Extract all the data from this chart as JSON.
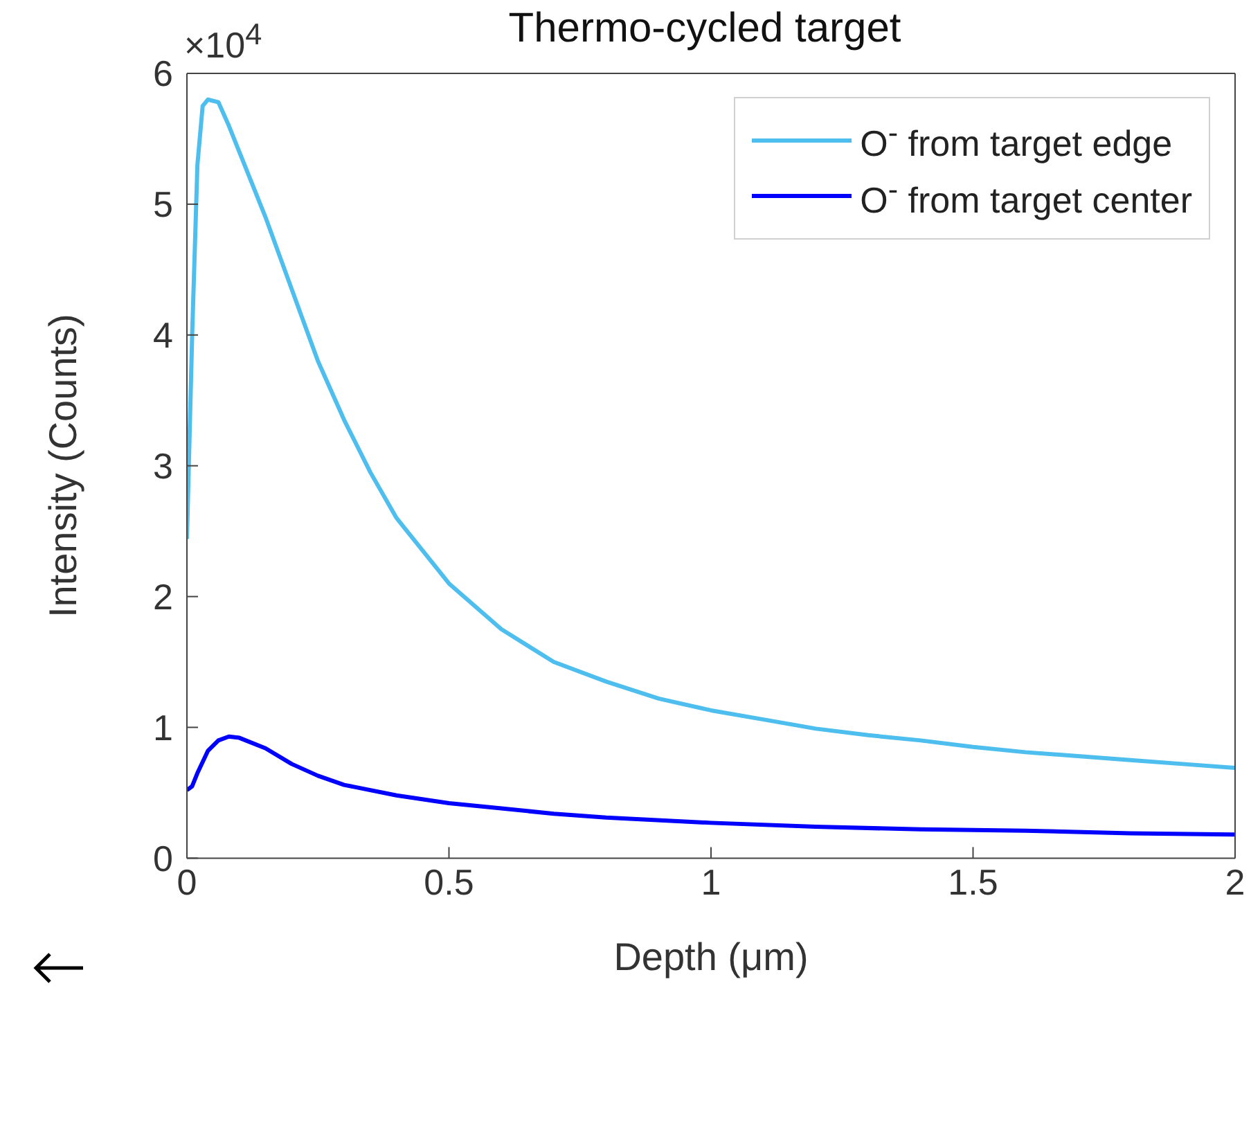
{
  "chart_data": {
    "type": "line",
    "title": "Thermo-cycled target",
    "xlabel": "Depth (μm)",
    "ylabel": "Intensity (Counts)",
    "annotations": [
      "×10$^{4}$"
    ],
    "xlim": [
      0,
      2
    ],
    "xticks": [
      0,
      0.5,
      1,
      1.5,
      2
    ],
    "ylim": [
      0,
      6
    ],
    "yticks": [
      0,
      1,
      2,
      3,
      4,
      5,
      6
    ],
    "grid": false,
    "legend": "top right",
    "line_style": "solid",
    "marker": "none",
    "series": [
      {
        "name": "O$^{-}$ from target edge",
        "color": "#4dbeee",
        "x": [
          0,
          0.01,
          0.02,
          0.03,
          0.04,
          0.06,
          0.08,
          0.1,
          0.15,
          0.2,
          0.25,
          0.3,
          0.35,
          0.4,
          0.45,
          0.5,
          0.6,
          0.7,
          0.8,
          0.9,
          1.0,
          1.1,
          1.2,
          1.3,
          1.4,
          1.5,
          1.6,
          1.7,
          1.8,
          1.9,
          2.0
        ],
        "values": [
          2.44,
          4.0,
          5.3,
          5.75,
          5.8,
          5.78,
          5.6,
          5.4,
          4.9,
          4.35,
          3.8,
          3.35,
          2.95,
          2.6,
          2.35,
          2.1,
          1.75,
          1.5,
          1.35,
          1.22,
          1.13,
          1.06,
          0.99,
          0.94,
          0.9,
          0.85,
          0.81,
          0.78,
          0.75,
          0.72,
          0.69
        ]
      },
      {
        "name": "O$^{-}$ from target center",
        "color": "#0000ff",
        "x": [
          0,
          0.01,
          0.02,
          0.04,
          0.06,
          0.08,
          0.1,
          0.15,
          0.2,
          0.25,
          0.3,
          0.4,
          0.5,
          0.6,
          0.7,
          0.8,
          1.0,
          1.2,
          1.4,
          1.6,
          1.8,
          2.0
        ],
        "values": [
          0.52,
          0.55,
          0.65,
          0.82,
          0.9,
          0.93,
          0.92,
          0.84,
          0.72,
          0.63,
          0.56,
          0.48,
          0.42,
          0.38,
          0.34,
          0.31,
          0.27,
          0.24,
          0.22,
          0.21,
          0.19,
          0.18
        ]
      }
    ]
  }
}
